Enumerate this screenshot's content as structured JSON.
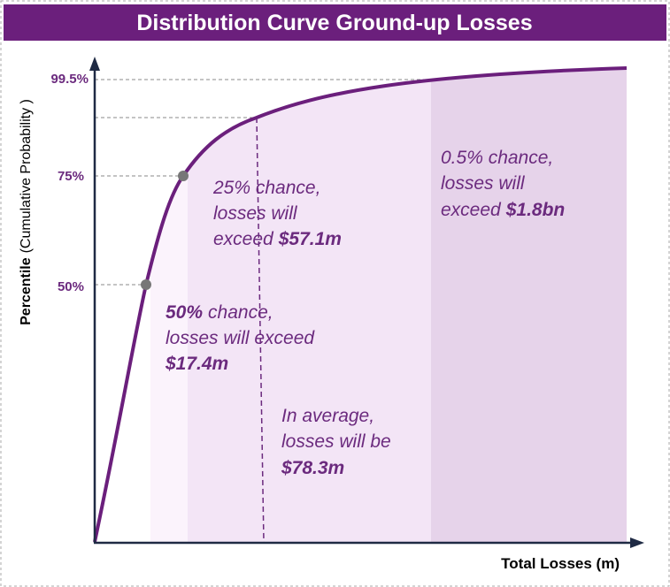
{
  "title": "Distribution Curve Ground-up Losses",
  "y_axis": {
    "label_bold": "Percentile",
    "label_rest": "(Cumulative Probability )",
    "ticks": [
      "99.5%",
      "75%",
      "50%"
    ]
  },
  "x_axis": {
    "label": "Total Losses (m)"
  },
  "annotations": {
    "p50": {
      "lead": "50%",
      "line1": "chance,",
      "line2": "losses will exceed",
      "amount": "$17.4m"
    },
    "p25": {
      "line1": "25% chance,",
      "line2": "losses will",
      "line3": "exceed",
      "amount": "$57.1m"
    },
    "mean": {
      "line1": "In average,",
      "line2": "losses will be",
      "amount": "$78.3m"
    },
    "p05": {
      "line1": "0.5% chance,",
      "line2": "losses will",
      "line3": "exceed",
      "amount": "$1.8bn"
    }
  }
}
